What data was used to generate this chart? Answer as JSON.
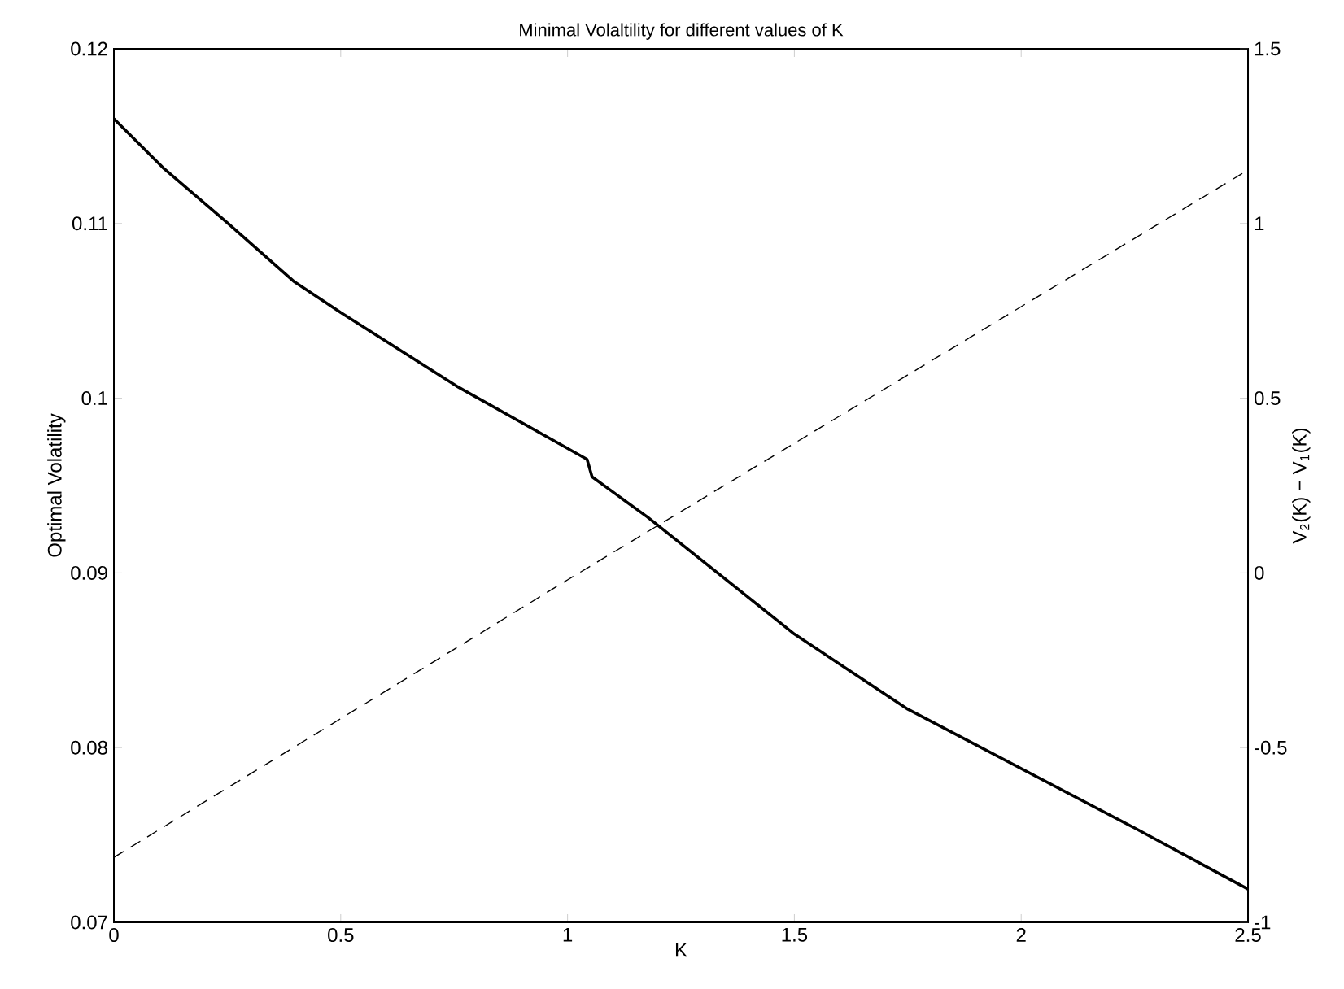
{
  "chart_data": {
    "type": "line",
    "title": "Minimal Volaltility for different values of K",
    "xlabel": "K",
    "ylabel": "Optimal Volatility",
    "y2label": "V$_{2}$(K) − V$_{1}$(K)",
    "xlim": [
      0,
      2.5
    ],
    "xticks": [
      0,
      0.5,
      1,
      1.5,
      2,
      2.5
    ],
    "ylim": [
      0.07,
      0.12
    ],
    "yticks": [
      0.07,
      0.08,
      0.09,
      0.1,
      0.11,
      0.12
    ],
    "y2lim": [
      -1,
      1.5
    ],
    "y2ticks": [
      -1,
      -0.5,
      0,
      0.5,
      1,
      1.5
    ],
    "marker": "none",
    "series": [
      {
        "color": "#000000",
        "line_style": "solid",
        "x": [
          0,
          0.108,
          0.252,
          0.396,
          0.5,
          0.755,
          1.043,
          1.054,
          1.176,
          1.5,
          1.75,
          2.0,
          2.25,
          2.5
        ],
        "values": [
          0.116,
          0.1132,
          0.11,
          0.1067,
          0.1049,
          0.1007,
          0.0965,
          0.0955,
          0.0932,
          0.0865,
          0.0822,
          0.0788,
          0.0754,
          0.0719
        ]
      },
      {
        "color": "#000000",
        "line_style": "dashed",
        "axis": "y2",
        "x": [
          0,
          1,
          2.5
        ],
        "values": [
          -0.814,
          -0.02,
          1.153
        ]
      }
    ]
  }
}
